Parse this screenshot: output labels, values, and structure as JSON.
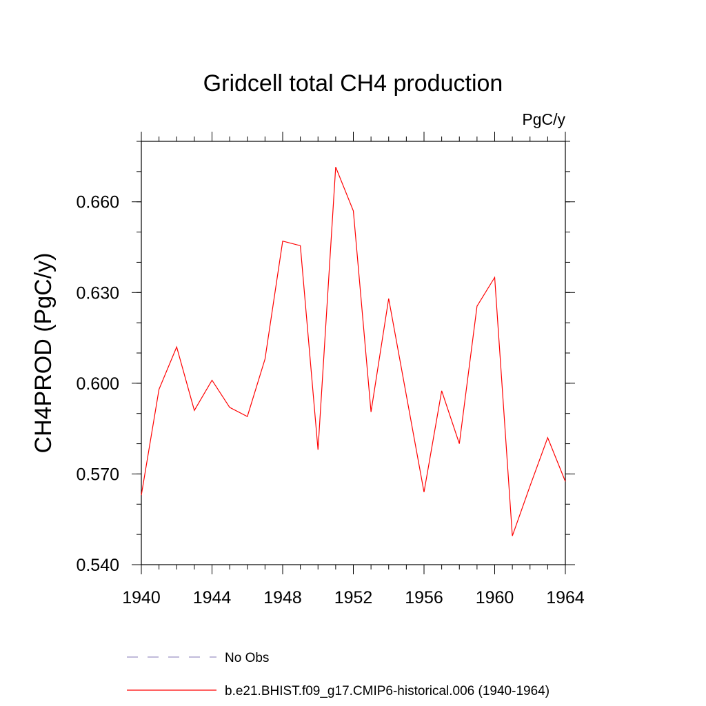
{
  "chart_data": {
    "type": "line",
    "title": "Gridcell total CH4 production",
    "units_label": "PgC/y",
    "xlabel": "",
    "ylabel": "CH4PROD  (PgC/y)",
    "xlim": [
      1940,
      1964
    ],
    "ylim": [
      0.54,
      0.68
    ],
    "x_ticks": [
      "1940",
      "1944",
      "1948",
      "1952",
      "1956",
      "1960",
      "1964"
    ],
    "y_ticks": [
      "0.540",
      "0.570",
      "0.600",
      "0.630",
      "0.660"
    ],
    "series": [
      {
        "name": "b.e21.BHIST.f09_g17.CMIP6-historical.006 (1940-1964)",
        "color": "#ff0000",
        "x": [
          1940,
          1941,
          1942,
          1943,
          1944,
          1945,
          1946,
          1947,
          1948,
          1949,
          1950,
          1951,
          1952,
          1953,
          1954,
          1955,
          1956,
          1957,
          1958,
          1959,
          1960,
          1961,
          1962,
          1963,
          1964
        ],
        "values": [
          0.563,
          0.598,
          0.612,
          0.591,
          0.601,
          0.592,
          0.589,
          0.608,
          0.647,
          0.6455,
          0.578,
          0.6715,
          0.657,
          0.5905,
          0.628,
          0.596,
          0.564,
          0.5975,
          0.58,
          0.6255,
          0.635,
          0.5495,
          0.566,
          0.582,
          0.5675
        ]
      }
    ],
    "legend": [
      {
        "label": "No Obs",
        "style": "dashed",
        "color": "#9a92c4"
      },
      {
        "label": "b.e21.BHIST.f09_g17.CMIP6-historical.006 (1940-1964)",
        "style": "solid",
        "color": "#ff0000"
      }
    ]
  }
}
